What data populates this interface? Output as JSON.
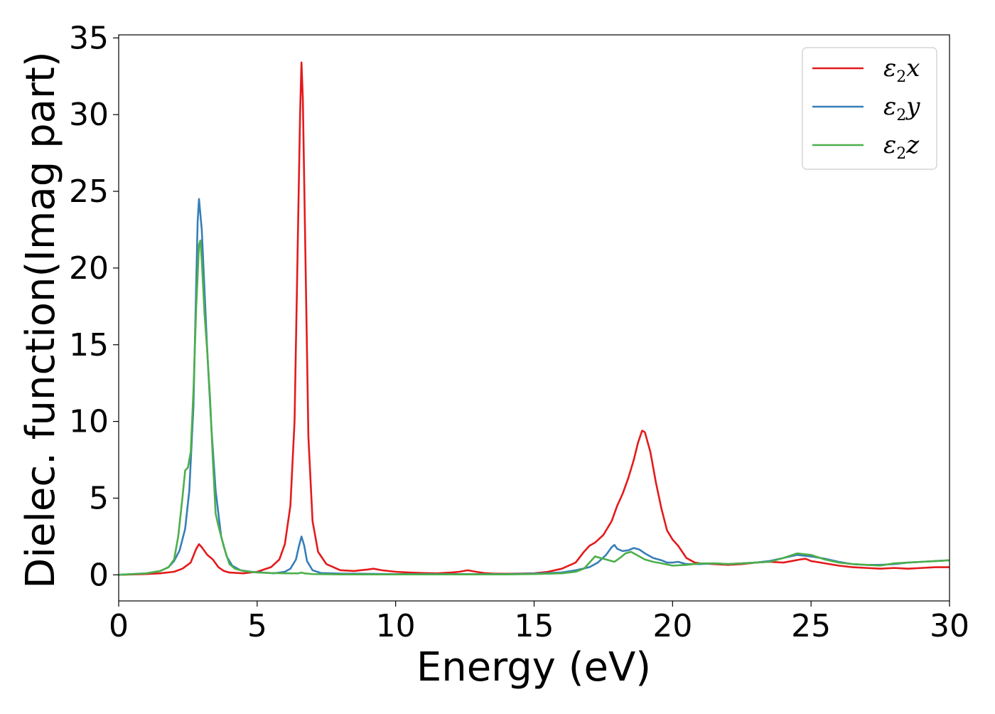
{
  "chart_data": {
    "type": "line",
    "title": "",
    "xlabel": "Energy (eV)",
    "ylabel": "Dielec. function(Imag part)",
    "xlim": [
      0,
      30
    ],
    "ylim": [
      -1.7,
      35.2
    ],
    "xticks": [
      0,
      5,
      10,
      15,
      20,
      25,
      30
    ],
    "xtick_labels": [
      "0",
      "5",
      "10",
      "15",
      "20",
      "25",
      "30"
    ],
    "yticks": [
      0,
      5,
      10,
      15,
      20,
      25,
      30,
      35
    ],
    "ytick_labels": [
      "0",
      "5",
      "10",
      "15",
      "20",
      "25",
      "30",
      "35"
    ],
    "grid": false,
    "legend_position": "top-right",
    "series": [
      {
        "name": "ε2x",
        "legend": {
          "base": "ε",
          "sub": "2",
          "comp": "x"
        },
        "color": "#e41a1c",
        "x": [
          0,
          1,
          1.5,
          2,
          2.3,
          2.6,
          2.8,
          2.9,
          3.0,
          3.2,
          3.4,
          3.6,
          3.8,
          4.0,
          4.5,
          5.0,
          5.5,
          5.8,
          6.0,
          6.2,
          6.35,
          6.45,
          6.55,
          6.6,
          6.65,
          6.75,
          6.85,
          7.0,
          7.2,
          7.5,
          8.0,
          8.5,
          9.0,
          9.2,
          9.5,
          10.0,
          10.5,
          11.0,
          11.5,
          12.0,
          12.3,
          12.6,
          12.9,
          13.2,
          13.5,
          14.0,
          14.5,
          15.0,
          15.5,
          16.0,
          16.5,
          16.8,
          17.0,
          17.2,
          17.5,
          17.8,
          18.0,
          18.2,
          18.4,
          18.6,
          18.75,
          18.9,
          19.0,
          19.2,
          19.4,
          19.6,
          19.8,
          20.0,
          20.2,
          20.5,
          20.8,
          21.0,
          21.5,
          22.0,
          22.5,
          23.0,
          23.5,
          24.0,
          24.3,
          24.6,
          24.8,
          25.0,
          25.5,
          26.0,
          26.5,
          27.0,
          27.5,
          28.0,
          28.5,
          29.0,
          29.5,
          30.0
        ],
        "y": [
          0.0,
          0.05,
          0.1,
          0.2,
          0.4,
          0.8,
          1.7,
          2.0,
          1.8,
          1.3,
          1.0,
          0.5,
          0.25,
          0.15,
          0.1,
          0.2,
          0.5,
          1.0,
          2.0,
          4.5,
          10.0,
          20.0,
          30.0,
          33.4,
          31.0,
          20.0,
          9.0,
          3.5,
          1.5,
          0.7,
          0.3,
          0.25,
          0.35,
          0.4,
          0.3,
          0.2,
          0.15,
          0.12,
          0.1,
          0.15,
          0.2,
          0.3,
          0.2,
          0.12,
          0.08,
          0.07,
          0.08,
          0.1,
          0.2,
          0.4,
          0.8,
          1.5,
          1.9,
          2.1,
          2.6,
          3.5,
          4.5,
          5.3,
          6.3,
          7.5,
          8.6,
          9.4,
          9.3,
          8.0,
          6.0,
          4.3,
          2.9,
          2.3,
          1.9,
          1.1,
          0.8,
          0.75,
          0.7,
          0.65,
          0.7,
          0.8,
          0.85,
          0.8,
          0.9,
          1.0,
          1.05,
          0.9,
          0.75,
          0.6,
          0.5,
          0.45,
          0.4,
          0.45,
          0.4,
          0.45,
          0.5,
          0.5
        ]
      },
      {
        "name": "ε2y",
        "legend": {
          "base": "ε",
          "sub": "2",
          "comp": "y"
        },
        "color": "#377eb8",
        "x": [
          0,
          1,
          1.5,
          1.8,
          2.0,
          2.2,
          2.4,
          2.55,
          2.7,
          2.8,
          2.85,
          2.9,
          3.0,
          3.1,
          3.2,
          3.35,
          3.5,
          3.7,
          3.9,
          4.1,
          4.4,
          4.8,
          5.2,
          5.6,
          6.0,
          6.2,
          6.4,
          6.5,
          6.6,
          6.7,
          6.8,
          7.0,
          7.3,
          8.0,
          10.0,
          12.0,
          14.0,
          15.0,
          16.0,
          16.5,
          17.0,
          17.3,
          17.6,
          17.8,
          17.9,
          18.0,
          18.2,
          18.4,
          18.6,
          18.8,
          19.0,
          19.3,
          19.6,
          19.8,
          20.0,
          20.2,
          20.5,
          21.0,
          21.5,
          22.0,
          22.5,
          23.0,
          23.5,
          24.0,
          24.5,
          25.0,
          25.5,
          26.0,
          26.5,
          27.0,
          27.5,
          28.0,
          28.5,
          29.0,
          29.5,
          30.0
        ],
        "y": [
          0.0,
          0.1,
          0.25,
          0.5,
          0.9,
          1.6,
          3.0,
          5.5,
          11.0,
          19.0,
          23.0,
          24.5,
          22.5,
          18.5,
          14.5,
          9.5,
          5.5,
          2.5,
          1.2,
          0.6,
          0.3,
          0.2,
          0.15,
          0.1,
          0.2,
          0.4,
          1.0,
          1.8,
          2.5,
          1.9,
          0.9,
          0.3,
          0.12,
          0.08,
          0.05,
          0.05,
          0.05,
          0.08,
          0.15,
          0.3,
          0.5,
          0.8,
          1.3,
          1.8,
          1.95,
          1.7,
          1.55,
          1.6,
          1.75,
          1.65,
          1.4,
          1.1,
          0.95,
          0.8,
          0.8,
          0.85,
          0.7,
          0.7,
          0.75,
          0.7,
          0.75,
          0.8,
          0.9,
          1.1,
          1.3,
          1.2,
          1.05,
          0.85,
          0.7,
          0.65,
          0.65,
          0.7,
          0.8,
          0.85,
          0.9,
          0.95
        ]
      },
      {
        "name": "ε2z",
        "legend": {
          "base": "ε",
          "sub": "2",
          "comp": "z"
        },
        "color": "#4daf4a",
        "x": [
          0,
          1,
          1.5,
          1.8,
          2.0,
          2.15,
          2.3,
          2.4,
          2.5,
          2.6,
          2.7,
          2.8,
          2.9,
          2.95,
          3.0,
          3.1,
          3.2,
          3.3,
          3.4,
          3.5,
          3.6,
          3.8,
          4.0,
          4.2,
          4.5,
          5.0,
          5.5,
          6.0,
          6.5,
          6.6,
          6.7,
          7.0,
          8.0,
          10.0,
          12.0,
          14.0,
          15.0,
          16.0,
          16.5,
          16.8,
          17.0,
          17.2,
          17.4,
          17.6,
          17.9,
          18.1,
          18.3,
          18.5,
          18.7,
          19.0,
          19.3,
          19.6,
          20.0,
          20.5,
          21.0,
          21.5,
          22.0,
          22.5,
          23.0,
          23.5,
          24.0,
          24.5,
          25.0,
          25.5,
          26.0,
          26.5,
          27.0,
          27.5,
          28.0,
          28.5,
          29.0,
          29.5,
          30.0
        ],
        "y": [
          0.0,
          0.1,
          0.25,
          0.5,
          1.0,
          2.5,
          5.0,
          6.8,
          7.0,
          8.0,
          12.0,
          17.5,
          21.5,
          21.8,
          20.5,
          17.0,
          14.5,
          11.5,
          7.5,
          4.0,
          3.2,
          1.8,
          0.7,
          0.4,
          0.25,
          0.15,
          0.12,
          0.1,
          0.1,
          0.15,
          0.1,
          0.05,
          0.03,
          0.03,
          0.03,
          0.03,
          0.05,
          0.1,
          0.2,
          0.4,
          0.8,
          1.2,
          1.1,
          1.0,
          0.85,
          1.1,
          1.4,
          1.5,
          1.3,
          1.0,
          0.85,
          0.75,
          0.6,
          0.65,
          0.75,
          0.75,
          0.7,
          0.75,
          0.8,
          0.85,
          1.1,
          1.4,
          1.3,
          1.0,
          0.8,
          0.7,
          0.65,
          0.6,
          0.75,
          0.8,
          0.85,
          0.9,
          0.95
        ]
      }
    ]
  }
}
